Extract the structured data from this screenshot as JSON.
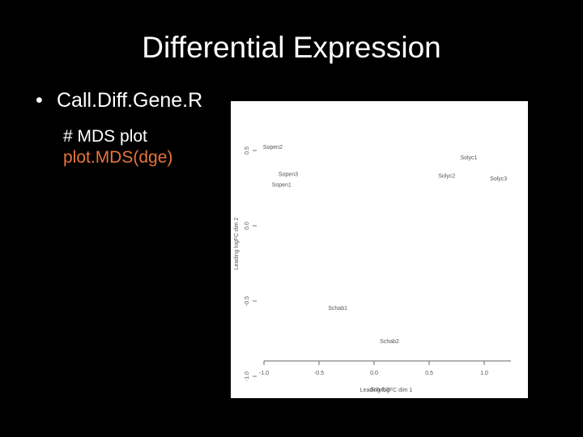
{
  "slide": {
    "title": "Differential Expression",
    "bullet_symbol": "•",
    "bullet_text": "Call.Diff.Gene.R",
    "comment_line": "# MDS plot",
    "code_line": "plot.MDS(dge)",
    "code_color": "#e8743b"
  },
  "chart_data": {
    "type": "scatter",
    "title": "",
    "xlabel": "Leading logFC dim 1",
    "ylabel": "Leading logFC dim 2",
    "xlim": [
      -1.0,
      1.0
    ],
    "ylim": [
      -1.0,
      1.0
    ],
    "x_ticks": [
      -1.0,
      -0.5,
      0.0,
      0.5,
      1.0
    ],
    "x_tick_labels": [
      "-1.0",
      "-0.5",
      "0.0",
      "0.5",
      "1.0"
    ],
    "y_ticks": [
      -1.0,
      -0.5,
      0.0,
      0.5
    ],
    "y_tick_labels": [
      "-1.0",
      "-0.5",
      "0.0",
      "0.5"
    ],
    "grid": false,
    "marker": "text-label",
    "points": [
      {
        "label": "Sopen2",
        "x": -0.92,
        "y": 0.52
      },
      {
        "label": "Sopen3",
        "x": -0.78,
        "y": 0.34
      },
      {
        "label": "Sopen1",
        "x": -0.84,
        "y": 0.27
      },
      {
        "label": "Solyc1",
        "x": 0.86,
        "y": 0.45
      },
      {
        "label": "Solyc2",
        "x": 0.66,
        "y": 0.33
      },
      {
        "label": "Solyc3",
        "x": 1.13,
        "y": 0.31
      },
      {
        "label": "Schab1",
        "x": -0.33,
        "y": -0.55
      },
      {
        "label": "Schab2",
        "x": 0.14,
        "y": -0.77
      },
      {
        "label": "Schab3",
        "x": 0.05,
        "y": -1.09
      }
    ]
  }
}
